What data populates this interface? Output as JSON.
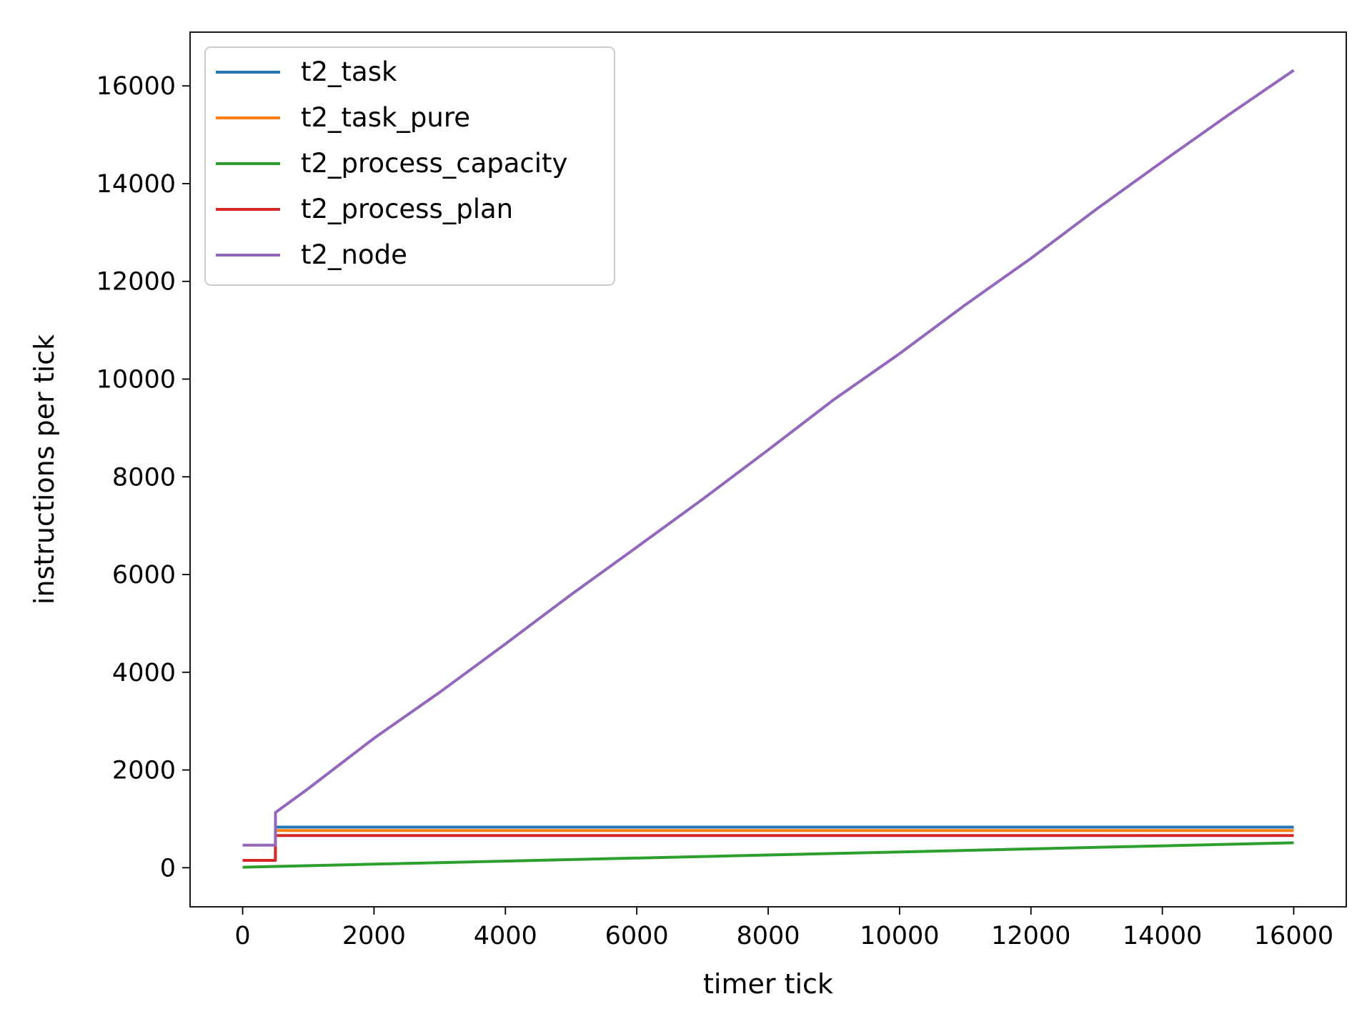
{
  "chart_data": {
    "type": "line",
    "xlabel": "timer tick",
    "ylabel": "instructions per tick",
    "xlim": [
      -800,
      16800
    ],
    "ylim": [
      -800,
      17100
    ],
    "xticks": [
      0,
      2000,
      4000,
      6000,
      8000,
      10000,
      12000,
      14000,
      16000
    ],
    "yticks": [
      0,
      2000,
      4000,
      6000,
      8000,
      10000,
      12000,
      14000,
      16000
    ],
    "legend_position": "top-left",
    "grid": false,
    "series": [
      {
        "name": "t2_task",
        "color": "#1f77b4",
        "x": [
          0,
          499,
          500,
          16000
        ],
        "y": [
          150,
          150,
          830,
          830
        ]
      },
      {
        "name": "t2_task_pure",
        "color": "#ff7f0e",
        "x": [
          0,
          499,
          500,
          16000
        ],
        "y": [
          150,
          150,
          760,
          760
        ]
      },
      {
        "name": "t2_process_capacity",
        "color": "#2ca02c",
        "x": [
          0,
          16000
        ],
        "y": [
          10,
          510
        ]
      },
      {
        "name": "t2_process_plan",
        "color": "#d62728",
        "x": [
          0,
          499,
          500,
          16000
        ],
        "y": [
          150,
          150,
          660,
          660
        ]
      },
      {
        "name": "t2_node",
        "color": "#9467bd",
        "x": [
          0,
          499,
          500,
          1000,
          2000,
          3000,
          4000,
          5000,
          6000,
          7000,
          8000,
          9000,
          10000,
          11000,
          12000,
          13000,
          14000,
          15000,
          16000
        ],
        "y": [
          460,
          460,
          1130,
          1620,
          2650,
          3590,
          4580,
          5590,
          6560,
          7540,
          8550,
          9580,
          10520,
          11520,
          12470,
          13480,
          14450,
          15400,
          16320
        ]
      }
    ]
  }
}
